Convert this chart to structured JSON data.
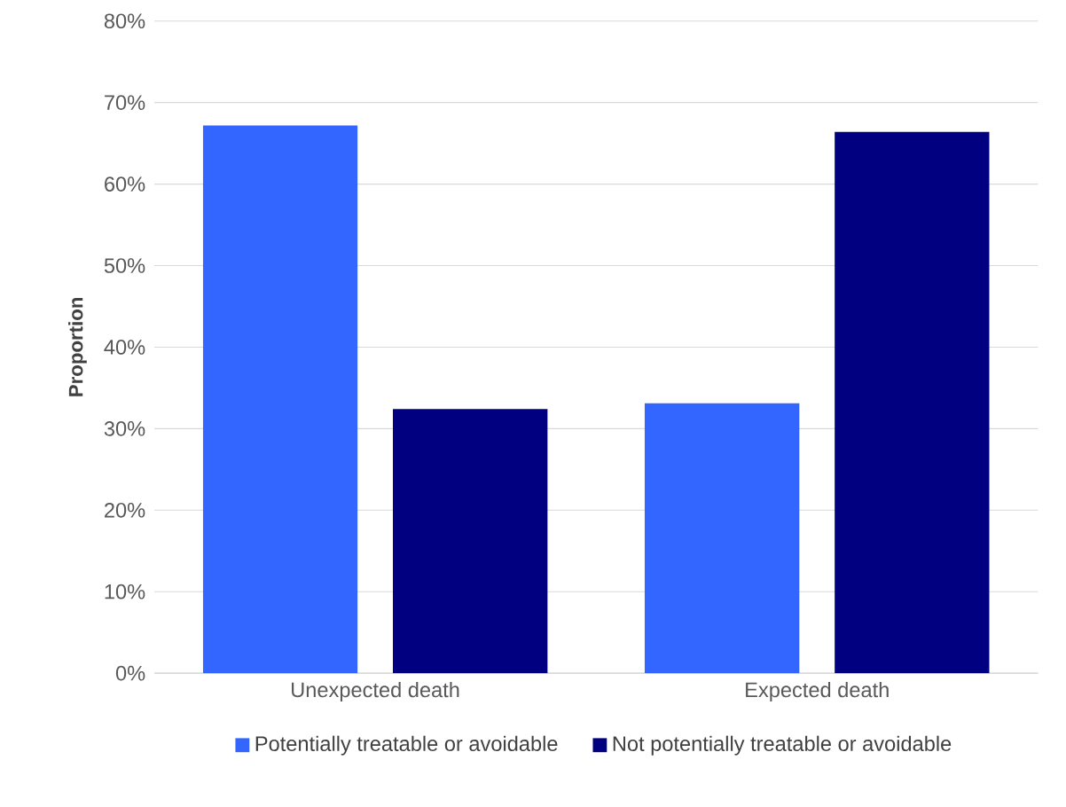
{
  "chart_data": {
    "type": "bar",
    "ylabel": "Proportion",
    "categories": [
      "Unexpected death",
      "Expected death"
    ],
    "series": [
      {
        "name": "Potentially treatable or avoidable",
        "color": "#3366ff",
        "values": [
          67.2,
          33.1
        ]
      },
      {
        "name": "Not potentially treatable or avoidable",
        "color": "#000080",
        "values": [
          32.4,
          66.4
        ]
      }
    ],
    "ylim": [
      0,
      80
    ],
    "yticks": [
      {
        "value": 0,
        "label": "0%"
      },
      {
        "value": 10,
        "label": "10%"
      },
      {
        "value": 20,
        "label": "20%"
      },
      {
        "value": 30,
        "label": "30%"
      },
      {
        "value": 40,
        "label": "40%"
      },
      {
        "value": 50,
        "label": "50%"
      },
      {
        "value": 60,
        "label": "60%"
      },
      {
        "value": 70,
        "label": "70%"
      },
      {
        "value": 80,
        "label": "80%"
      }
    ],
    "grid": "y",
    "legend": "bottom"
  }
}
